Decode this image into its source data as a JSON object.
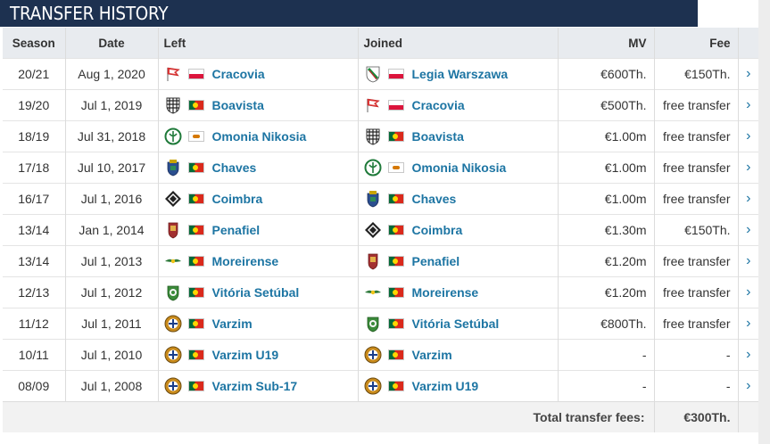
{
  "title": "TRANSFER HISTORY",
  "headers": {
    "season": "Season",
    "date": "Date",
    "left": "Left",
    "joined": "Joined",
    "mv": "MV",
    "fee": "Fee"
  },
  "rows": [
    {
      "season": "20/21",
      "date": "Aug 1, 2020",
      "left": {
        "name": "Cracovia",
        "flag": "pl",
        "crest": "cracovia-crest-icon"
      },
      "joined": {
        "name": "Legia Warszawa",
        "flag": "pl",
        "crest": "legia-crest-icon"
      },
      "mv": "€600Th.",
      "fee": "€150Th."
    },
    {
      "season": "19/20",
      "date": "Jul 1, 2019",
      "left": {
        "name": "Boavista",
        "flag": "pt",
        "crest": "boavista-crest-icon"
      },
      "joined": {
        "name": "Cracovia",
        "flag": "pl",
        "crest": "cracovia-crest-icon"
      },
      "mv": "€500Th.",
      "fee": "free transfer"
    },
    {
      "season": "18/19",
      "date": "Jul 31, 2018",
      "left": {
        "name": "Omonia Nikosia",
        "flag": "cy",
        "crest": "omonia-crest-icon"
      },
      "joined": {
        "name": "Boavista",
        "flag": "pt",
        "crest": "boavista-crest-icon"
      },
      "mv": "€1.00m",
      "fee": "free transfer"
    },
    {
      "season": "17/18",
      "date": "Jul 10, 2017",
      "left": {
        "name": "Chaves",
        "flag": "pt",
        "crest": "chaves-crest-icon"
      },
      "joined": {
        "name": "Omonia Nikosia",
        "flag": "cy",
        "crest": "omonia-crest-icon"
      },
      "mv": "€1.00m",
      "fee": "free transfer"
    },
    {
      "season": "16/17",
      "date": "Jul 1, 2016",
      "left": {
        "name": "Coimbra",
        "flag": "pt",
        "crest": "coimbra-crest-icon"
      },
      "joined": {
        "name": "Chaves",
        "flag": "pt",
        "crest": "chaves-crest-icon"
      },
      "mv": "€1.00m",
      "fee": "free transfer"
    },
    {
      "season": "13/14",
      "date": "Jan 1, 2014",
      "left": {
        "name": "Penafiel",
        "flag": "pt",
        "crest": "penafiel-crest-icon"
      },
      "joined": {
        "name": "Coimbra",
        "flag": "pt",
        "crest": "coimbra-crest-icon"
      },
      "mv": "€1.30m",
      "fee": "€150Th."
    },
    {
      "season": "13/14",
      "date": "Jul 1, 2013",
      "left": {
        "name": "Moreirense",
        "flag": "pt",
        "crest": "moreirense-crest-icon"
      },
      "joined": {
        "name": "Penafiel",
        "flag": "pt",
        "crest": "penafiel-crest-icon"
      },
      "mv": "€1.20m",
      "fee": "free transfer"
    },
    {
      "season": "12/13",
      "date": "Jul 1, 2012",
      "left": {
        "name": "Vitória Setúbal",
        "flag": "pt",
        "crest": "setubal-crest-icon"
      },
      "joined": {
        "name": "Moreirense",
        "flag": "pt",
        "crest": "moreirense-crest-icon"
      },
      "mv": "€1.20m",
      "fee": "free transfer"
    },
    {
      "season": "11/12",
      "date": "Jul 1, 2011",
      "left": {
        "name": "Varzim",
        "flag": "pt",
        "crest": "varzim-crest-icon"
      },
      "joined": {
        "name": "Vitória Setúbal",
        "flag": "pt",
        "crest": "setubal-crest-icon"
      },
      "mv": "€800Th.",
      "fee": "free transfer"
    },
    {
      "season": "10/11",
      "date": "Jul 1, 2010",
      "left": {
        "name": "Varzim U19",
        "flag": "pt",
        "crest": "varzim-crest-icon"
      },
      "joined": {
        "name": "Varzim",
        "flag": "pt",
        "crest": "varzim-crest-icon"
      },
      "mv": "-",
      "fee": "-"
    },
    {
      "season": "08/09",
      "date": "Jul 1, 2008",
      "left": {
        "name": "Varzim Sub-17",
        "flag": "pt",
        "crest": "varzim-crest-icon"
      },
      "joined": {
        "name": "Varzim U19",
        "flag": "pt",
        "crest": "varzim-crest-icon"
      },
      "mv": "-",
      "fee": "-"
    }
  ],
  "total": {
    "label": "Total transfer fees:",
    "value": "€300Th."
  },
  "arrow": "›",
  "colors": {
    "header_bar": "#1d3150",
    "link": "#1d75a3"
  }
}
